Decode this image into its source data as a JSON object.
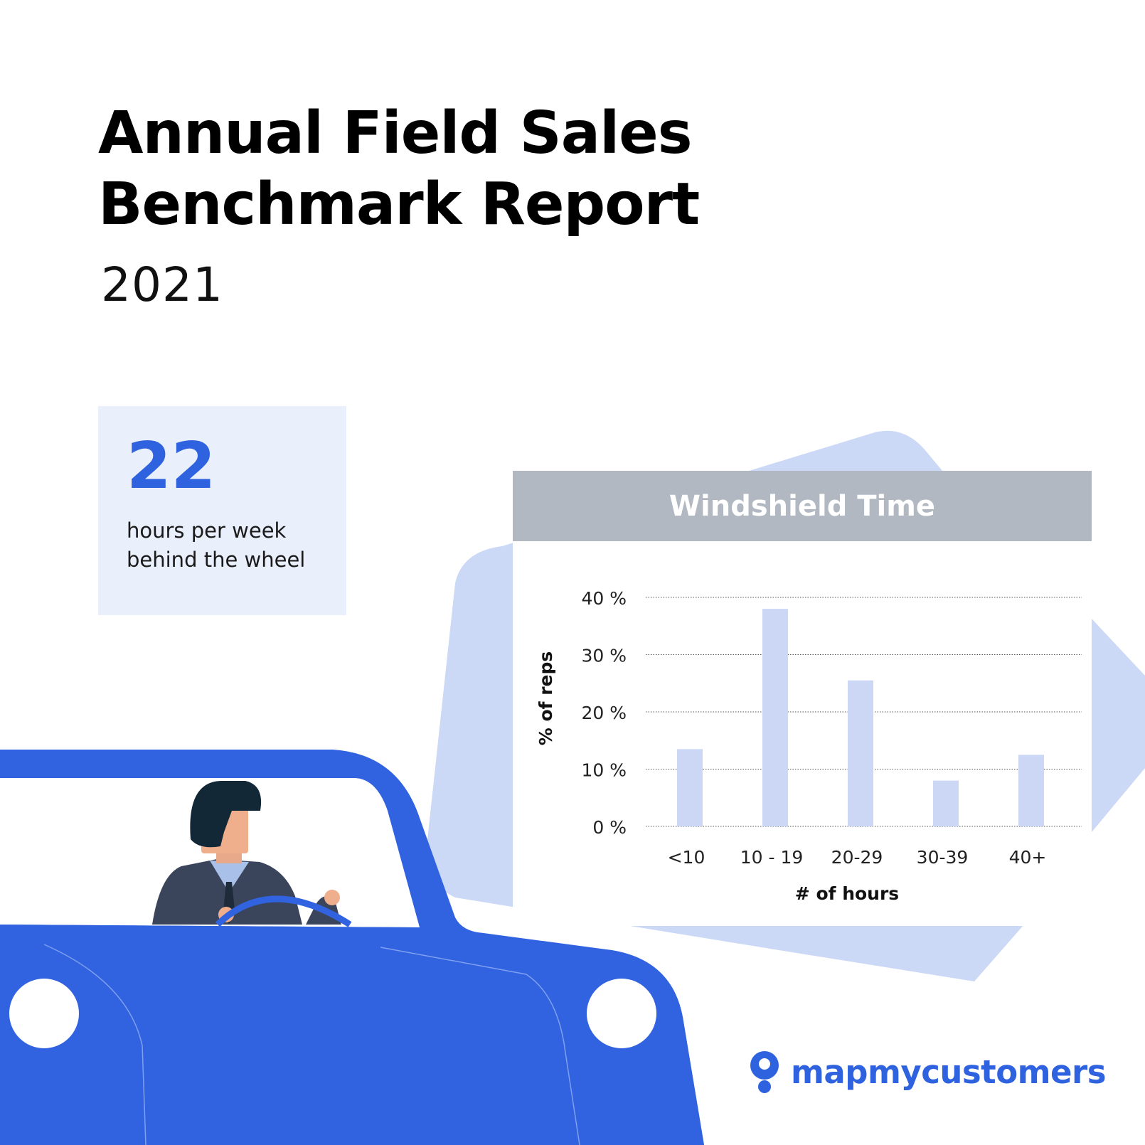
{
  "report": {
    "title_line1": "Annual Field Sales",
    "title_line2": "Benchmark Report",
    "year": "2021"
  },
  "stat": {
    "value": "22",
    "caption_line1": "hours per week",
    "caption_line2": "behind the wheel"
  },
  "brand": {
    "name": "mapmycustomers",
    "accent": "#2f62df",
    "logo_icon": "person-pin-icon"
  },
  "colors": {
    "bar": "#cbd7f5",
    "header": "#b1b8c1",
    "background_shape": "#cbd8f6",
    "car": "#3163e0"
  },
  "chart_data": {
    "type": "bar",
    "title": "Windshield Time",
    "xlabel": "# of hours",
    "ylabel": "% of reps",
    "categories": [
      "<10",
      "10 - 19",
      "20-29",
      "30-39",
      "40+"
    ],
    "values": [
      13.5,
      38,
      25.5,
      8,
      12.5
    ],
    "yticks": [
      "0 %",
      "10 %",
      "20 %",
      "30 %",
      "40 %"
    ],
    "ylim": [
      0,
      40
    ],
    "grid": true
  }
}
